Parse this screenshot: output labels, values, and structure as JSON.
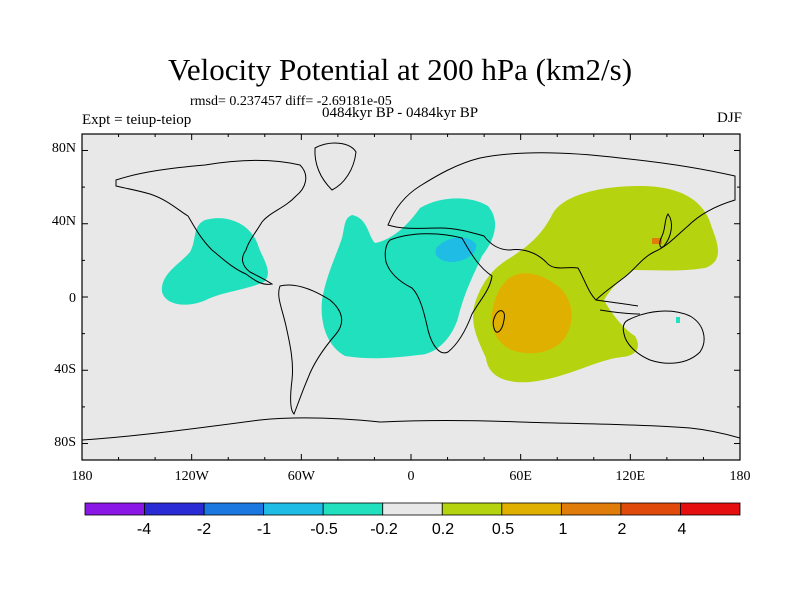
{
  "title": "Velocity Potential at 200 hPa (km2/s)",
  "stats": "rmsd= 0.237457 diff= -2.69181e-05",
  "experiment": "Expt = teiup-teiop",
  "period": "0484kyr BP - 0484kyr BP",
  "season": "DJF",
  "lon_ticks": [
    "180",
    "120W",
    "60W",
    "0",
    "60E",
    "120E",
    "180"
  ],
  "lat_ticks": [
    "80N",
    "40N",
    "0",
    "40S",
    "80S"
  ],
  "colorbar": {
    "colors": [
      "#8a17e6",
      "#2b2bd6",
      "#1a78e0",
      "#1fbde6",
      "#21e0be",
      "#e8e8e8",
      "#b5d40f",
      "#e0b000",
      "#e07c0a",
      "#e04a0a",
      "#e60f0f"
    ],
    "labels": [
      "-4",
      "-2",
      "-1",
      "-0.5",
      "-0.2",
      "0.2",
      "0.5",
      "1",
      "2",
      "4"
    ]
  },
  "colors": {
    "background": "#e8e8e8",
    "negative_weak": "#21e0be",
    "negative_mid": "#1fbde6",
    "positive_weak": "#b5d40f",
    "positive_mid": "#e0b000",
    "positive_strong": "#e07c0a"
  }
}
